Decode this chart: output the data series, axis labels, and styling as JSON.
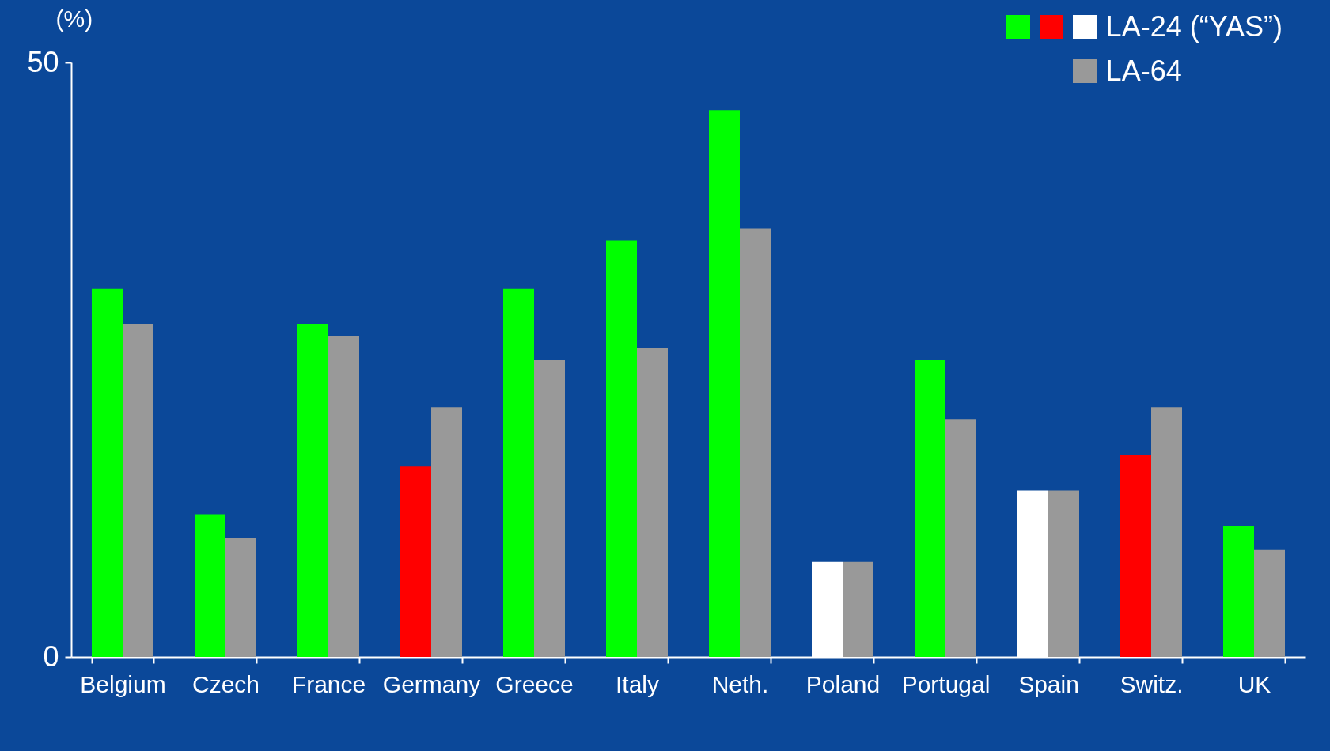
{
  "chart_data": {
    "type": "bar",
    "ylabel": "(%)",
    "categories": [
      "Belgium",
      "Czech",
      "France",
      "Germany",
      "Greece",
      "Italy",
      "Neth.",
      "Poland",
      "Portugal",
      "Spain",
      "Switz.",
      "UK"
    ],
    "series": [
      {
        "name": "LA-24 (“YAS”)",
        "colors": [
          "#00ff00",
          "#00ff00",
          "#00ff00",
          "#ff0000",
          "#00ff00",
          "#00ff00",
          "#00ff00",
          "#ffffff",
          "#00ff00",
          "#ffffff",
          "#ff0000",
          "#00ff00"
        ],
        "values": [
          31,
          12,
          28,
          16,
          31,
          35,
          46,
          8,
          25,
          14,
          17,
          11
        ]
      },
      {
        "name": "LA-64",
        "color": "#999999",
        "values": [
          28,
          10,
          27,
          21,
          25,
          26,
          36,
          8,
          20,
          14,
          21,
          9
        ]
      }
    ],
    "ylim": [
      0,
      50
    ],
    "yticks": [
      0,
      50
    ],
    "grid": false,
    "legend": "top right"
  }
}
